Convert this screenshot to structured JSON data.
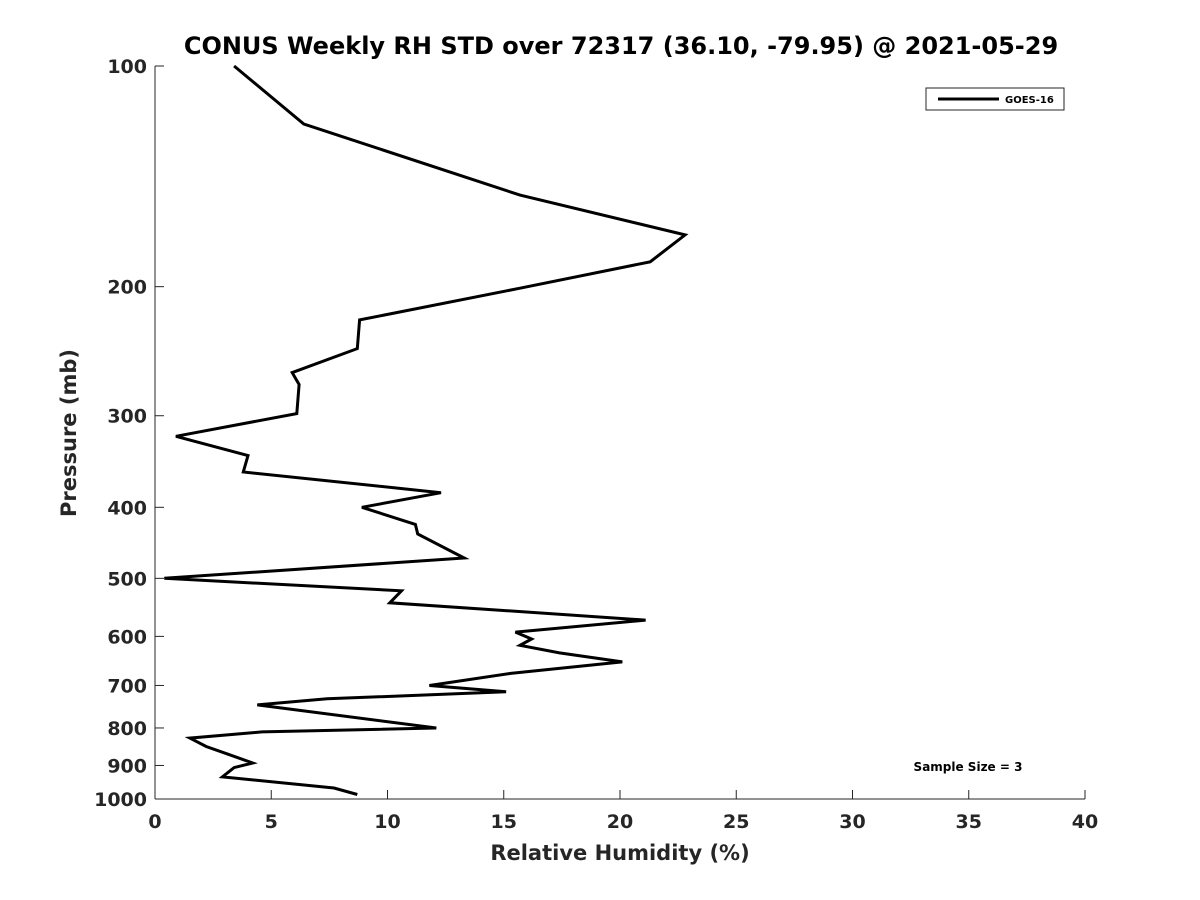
{
  "chart_data": {
    "type": "line",
    "title": "CONUS Weekly RH STD over 72317 (36.10, -79.95) @ 2021-05-29",
    "xlabel": "Relative Humidity (%)",
    "ylabel": "Pressure (mb)",
    "xlim": [
      0,
      40
    ],
    "ylim": [
      100,
      1000
    ],
    "y_scale": "log",
    "y_reversed": true,
    "x_ticks": [
      0,
      5,
      10,
      15,
      20,
      25,
      30,
      35,
      40
    ],
    "x_tick_labels": [
      "0",
      "5",
      "10",
      "15",
      "20",
      "25",
      "30",
      "35",
      "40"
    ],
    "y_ticks": [
      100,
      200,
      300,
      400,
      500,
      600,
      700,
      800,
      900,
      1000
    ],
    "y_tick_labels": [
      "100",
      "200",
      "300",
      "400",
      "500",
      "600",
      "700",
      "800",
      "900",
      "1000"
    ],
    "grid": false,
    "legend_position": "top-right",
    "series": [
      {
        "name": "GOES-16",
        "color": "#000000",
        "x": [
          3.4,
          6.4,
          15.7,
          22.8,
          21.3,
          15.7,
          8.8,
          8.7,
          5.9,
          6.2,
          6.1,
          0.9,
          4.0,
          3.8,
          12.3,
          8.9,
          11.2,
          11.3,
          13.3,
          0.4,
          10.6,
          10.1,
          21.1,
          15.5,
          16.2,
          15.7,
          17.4,
          20.1,
          15.3,
          11.8,
          15.1,
          7.4,
          4.4,
          12.1,
          4.6,
          1.5,
          2.2,
          3.2,
          4.2,
          3.4,
          2.9,
          7.7,
          8.7
        ],
        "y": [
          100,
          120,
          150,
          170,
          185,
          201,
          222,
          243,
          262,
          272,
          298,
          320,
          340,
          358,
          382,
          400,
          422,
          435,
          469,
          500,
          520,
          540,
          570,
          592,
          605,
          617,
          632,
          650,
          674,
          700,
          714,
          730,
          744,
          800,
          810,
          826,
          848,
          870,
          893,
          906,
          933,
          966,
          986
        ]
      }
    ],
    "annotations": [
      {
        "text": "Sample Size = 3",
        "position": "bottom-right"
      }
    ]
  }
}
